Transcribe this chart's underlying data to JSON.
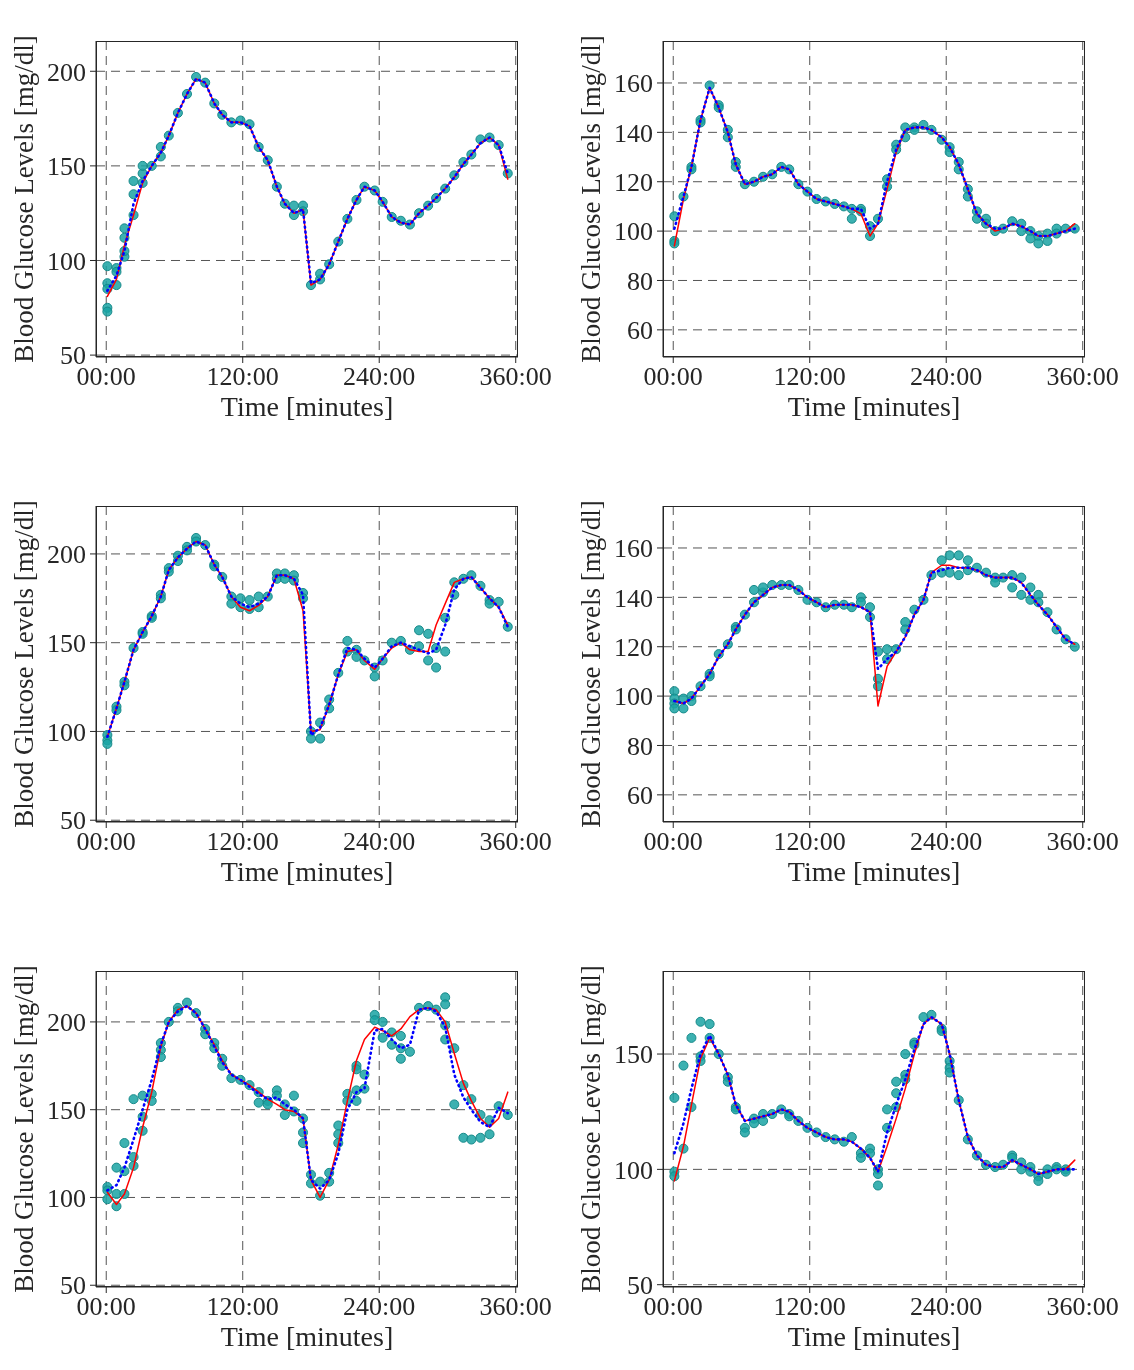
{
  "chart_data": [
    {
      "type": "line",
      "xlabel": "Time [minutes]",
      "ylabel": "Blood Glucose Levels [mg/dl]",
      "xlim": [
        -9,
        362
      ],
      "xticks": [
        {
          "value": 0,
          "label": "00:00"
        },
        {
          "value": 120,
          "label": "120:00"
        },
        {
          "value": 240,
          "label": "240:00"
        },
        {
          "value": 360,
          "label": "360:00"
        }
      ],
      "ylim": [
        49,
        216
      ],
      "yticks": [
        50,
        100,
        150,
        200
      ],
      "grid": true,
      "x": [
        1,
        9,
        16,
        24,
        32,
        40,
        48,
        55,
        63,
        71,
        79,
        87,
        95,
        102,
        110,
        118,
        126,
        134,
        142,
        150,
        157,
        165,
        173,
        180,
        188,
        196,
        204,
        212,
        220,
        227,
        236,
        243,
        251,
        259,
        267,
        275,
        283,
        290,
        298,
        306,
        314,
        321,
        329,
        337,
        345,
        353
      ],
      "series": [
        {
          "type": "line",
          "color": "#ff0000",
          "line_style": "solid",
          "values": [
            81,
            90,
            108,
            124,
            141,
            150,
            157,
            166,
            178,
            188,
            196,
            194,
            183,
            177,
            173,
            173,
            171,
            160,
            153,
            139,
            130,
            125,
            127,
            87,
            90,
            98,
            110,
            122,
            132,
            139,
            137,
            131,
            123,
            120,
            119,
            125,
            129,
            133,
            138,
            144,
            151,
            156,
            162,
            165,
            161,
            143
          ]
        },
        {
          "type": "line",
          "color": "#0000ff",
          "line_style": "dotted",
          "values": [
            84,
            92,
            105,
            130,
            142,
            150,
            157,
            166,
            178,
            188,
            196,
            194,
            183,
            177,
            173,
            173,
            171,
            160,
            153,
            139,
            130,
            125,
            127,
            88,
            90,
            98,
            110,
            122,
            132,
            139,
            137,
            131,
            123,
            120,
            119,
            125,
            129,
            133,
            138,
            144,
            151,
            156,
            162,
            165,
            161,
            146
          ]
        },
        {
          "type": "scatter",
          "color": "#1aa3a3",
          "marker": "circle",
          "x": [
            1,
            1,
            1,
            1,
            1,
            9,
            9,
            9,
            16,
            16,
            16,
            16,
            24,
            24,
            24,
            32,
            32,
            32,
            40,
            48,
            48,
            55,
            63,
            71,
            79,
            87,
            95,
            102,
            110,
            118,
            126,
            134,
            142,
            150,
            157,
            165,
            165,
            173,
            173,
            180,
            188,
            188,
            196,
            204,
            212,
            220,
            227,
            236,
            243,
            251,
            259,
            267,
            275,
            283,
            290,
            298,
            306,
            314,
            321,
            329,
            337,
            345,
            353
          ],
          "values": [
            75,
            73,
            88,
            85,
            97,
            87,
            96,
            94,
            102,
            105,
            112,
            117,
            124,
            135,
            142,
            141,
            146,
            150,
            150,
            155,
            160,
            166,
            178,
            188,
            197,
            194,
            183,
            177,
            173,
            174,
            172,
            160,
            153,
            139,
            130,
            124,
            129,
            129,
            126,
            87,
            90,
            93,
            98,
            110,
            122,
            132,
            139,
            137,
            131,
            123,
            121,
            119,
            125,
            129,
            133,
            138,
            145,
            152,
            156,
            164,
            165,
            161,
            146
          ]
        }
      ]
    },
    {
      "type": "line",
      "xlabel": "Time [minutes]",
      "ylabel": "Blood Glucose Levels [mg/dl]",
      "xlim": [
        -9,
        362
      ],
      "xticks": [
        {
          "value": 0,
          "label": "00:00"
        },
        {
          "value": 120,
          "label": "120:00"
        },
        {
          "value": 240,
          "label": "240:00"
        },
        {
          "value": 360,
          "label": "360:00"
        }
      ],
      "ylim": [
        49,
        177
      ],
      "yticks": [
        60,
        80,
        100,
        120,
        140,
        160
      ],
      "grid": true,
      "x": [
        1,
        9,
        16,
        24,
        32,
        40,
        48,
        55,
        63,
        71,
        79,
        87,
        95,
        102,
        110,
        118,
        126,
        134,
        142,
        150,
        157,
        165,
        173,
        180,
        188,
        196,
        204,
        212,
        220,
        227,
        236,
        243,
        251,
        259,
        267,
        275,
        283,
        290,
        298,
        306,
        314,
        321,
        329,
        337,
        345,
        353
      ],
      "series": [
        {
          "type": "line",
          "color": "#ff0000",
          "line_style": "solid",
          "values": [
            94,
            113,
            126,
            145,
            158,
            150,
            140,
            127,
            119,
            120,
            122,
            123,
            126,
            125,
            119,
            116,
            113,
            112,
            111,
            110,
            109,
            107,
            98,
            103,
            117,
            132,
            141,
            142,
            142,
            141,
            138,
            134,
            127,
            117,
            107,
            103,
            100,
            101,
            103,
            102,
            100,
            98,
            98,
            99,
            100,
            103
          ]
        },
        {
          "type": "line",
          "color": "#0000ff",
          "line_style": "dotted",
          "values": [
            101,
            114,
            126,
            145,
            158,
            150,
            140,
            127,
            119,
            120,
            122,
            123,
            126,
            125,
            119,
            116,
            113,
            112,
            111,
            110,
            109,
            109,
            101,
            103,
            120,
            133,
            141,
            142,
            142,
            141,
            138,
            134,
            127,
            117,
            107,
            103,
            101,
            101,
            103,
            102,
            100,
            98,
            98,
            99,
            100,
            101
          ]
        },
        {
          "type": "scatter",
          "color": "#1aa3a3",
          "marker": "circle",
          "x": [
            1,
            1,
            1,
            9,
            16,
            16,
            24,
            24,
            32,
            40,
            40,
            48,
            48,
            55,
            55,
            63,
            71,
            79,
            87,
            95,
            102,
            110,
            118,
            126,
            134,
            142,
            150,
            157,
            157,
            165,
            165,
            173,
            173,
            180,
            188,
            188,
            196,
            196,
            204,
            204,
            212,
            212,
            220,
            227,
            236,
            243,
            243,
            251,
            251,
            259,
            259,
            267,
            267,
            275,
            275,
            283,
            290,
            298,
            306,
            306,
            314,
            314,
            321,
            321,
            329,
            329,
            337,
            337,
            345,
            353
          ],
          "values": [
            106,
            96,
            95,
            114,
            126,
            125,
            145,
            144,
            159,
            151,
            150,
            141,
            138,
            128,
            126,
            119,
            120,
            122,
            123,
            126,
            125,
            119,
            116,
            113,
            112,
            111,
            110,
            109,
            105,
            109,
            108,
            102,
            98,
            105,
            121,
            118,
            135,
            133,
            142,
            138,
            142,
            141,
            143,
            141,
            137,
            134,
            132,
            128,
            125,
            117,
            114,
            108,
            105,
            105,
            103,
            100,
            101,
            104,
            103,
            100,
            100,
            97,
            98,
            95,
            99,
            96,
            101,
            99,
            101,
            101
          ]
        }
      ]
    },
    {
      "type": "line",
      "xlabel": "Time [minutes]",
      "ylabel": "Blood Glucose Levels [mg/dl]",
      "xlim": [
        -9,
        362
      ],
      "xticks": [
        {
          "value": 0,
          "label": "00:00"
        },
        {
          "value": 120,
          "label": "120:00"
        },
        {
          "value": 240,
          "label": "240:00"
        },
        {
          "value": 360,
          "label": "360:00"
        }
      ],
      "ylim": [
        49,
        227
      ],
      "yticks": [
        50,
        100,
        150,
        200
      ],
      "grid": true,
      "x": [
        1,
        9,
        16,
        24,
        32,
        40,
        48,
        55,
        63,
        71,
        79,
        87,
        95,
        102,
        110,
        118,
        126,
        134,
        142,
        150,
        157,
        165,
        173,
        180,
        188,
        196,
        204,
        212,
        220,
        227,
        236,
        243,
        251,
        259,
        267,
        275,
        283,
        290,
        298,
        306,
        314,
        321,
        329,
        337,
        345,
        353
      ],
      "series": [
        {
          "type": "line",
          "color": "#ff0000",
          "line_style": "solid",
          "values": [
            97,
            113,
            128,
            146,
            156,
            165,
            176,
            191,
            198,
            203,
            207,
            205,
            194,
            187,
            176,
            170,
            168,
            171,
            176,
            188,
            188,
            186,
            168,
            100,
            101,
            115,
            132,
            145,
            146,
            140,
            135,
            141,
            147,
            150,
            146,
            145,
            145,
            160,
            172,
            184,
            186,
            187,
            181,
            175,
            170,
            160
          ]
        },
        {
          "type": "line",
          "color": "#0000ff",
          "line_style": "dotted",
          "values": [
            97,
            113,
            128,
            146,
            156,
            165,
            176,
            191,
            198,
            203,
            207,
            205,
            194,
            187,
            176,
            172,
            170,
            172,
            176,
            188,
            188,
            186,
            177,
            98,
            102,
            115,
            132,
            147,
            146,
            141,
            136,
            141,
            148,
            150,
            148,
            146,
            144,
            146,
            160,
            180,
            186,
            187,
            181,
            175,
            170,
            159
          ]
        },
        {
          "type": "scatter",
          "color": "#1aa3a3",
          "marker": "circle",
          "x": [
            1,
            1,
            1,
            9,
            9,
            16,
            16,
            24,
            32,
            32,
            40,
            40,
            48,
            48,
            55,
            55,
            63,
            63,
            71,
            71,
            79,
            79,
            87,
            95,
            95,
            102,
            110,
            110,
            118,
            118,
            126,
            126,
            134,
            134,
            142,
            150,
            150,
            157,
            157,
            165,
            165,
            173,
            173,
            180,
            180,
            188,
            188,
            196,
            196,
            204,
            212,
            212,
            220,
            220,
            227,
            236,
            236,
            243,
            251,
            259,
            267,
            275,
            275,
            283,
            283,
            290,
            290,
            298,
            298,
            306,
            306,
            314,
            321,
            329,
            337,
            337,
            345,
            353
          ],
          "values": [
            98,
            95,
            93,
            114,
            112,
            128,
            126,
            147,
            156,
            155,
            165,
            164,
            177,
            175,
            192,
            190,
            199,
            196,
            204,
            202,
            209,
            207,
            205,
            194,
            193,
            187,
            176,
            172,
            175,
            170,
            174,
            169,
            176,
            170,
            176,
            189,
            186,
            189,
            186,
            188,
            185,
            178,
            175,
            100,
            96,
            105,
            96,
            118,
            113,
            133,
            151,
            145,
            146,
            142,
            140,
            136,
            131,
            140,
            150,
            151,
            146,
            157,
            148,
            155,
            140,
            147,
            136,
            164,
            145,
            184,
            177,
            186,
            188,
            182,
            174,
            172,
            173,
            159
          ]
        }
      ]
    },
    {
      "type": "line",
      "xlabel": "Time [minutes]",
      "ylabel": "Blood Glucose Levels [mg/dl]",
      "xlim": [
        -9,
        362
      ],
      "xticks": [
        {
          "value": 0,
          "label": "00:00"
        },
        {
          "value": 120,
          "label": "120:00"
        },
        {
          "value": 240,
          "label": "240:00"
        },
        {
          "value": 360,
          "label": "360:00"
        }
      ],
      "ylim": [
        49,
        177
      ],
      "yticks": [
        60,
        80,
        100,
        120,
        140,
        160
      ],
      "grid": true,
      "x": [
        1,
        9,
        16,
        24,
        32,
        40,
        48,
        55,
        63,
        71,
        79,
        87,
        95,
        102,
        110,
        118,
        126,
        134,
        142,
        150,
        157,
        165,
        173,
        180,
        188,
        196,
        204,
        212,
        220,
        227,
        236,
        243,
        251,
        259,
        267,
        275,
        283,
        290,
        298,
        306,
        314,
        321,
        329,
        337,
        345,
        353
      ],
      "series": [
        {
          "type": "line",
          "color": "#ff0000",
          "line_style": "solid",
          "values": [
            98,
            97,
            99,
            104,
            109,
            116,
            121,
            127,
            133,
            138,
            141,
            144,
            145,
            145,
            143,
            140,
            138,
            136,
            137,
            137,
            137,
            136,
            134,
            96,
            112,
            118,
            124,
            133,
            139,
            150,
            153,
            153,
            152,
            152,
            151,
            149,
            148,
            148,
            148,
            146,
            141,
            137,
            133,
            128,
            123,
            121
          ]
        },
        {
          "type": "line",
          "color": "#0000ff",
          "line_style": "dotted",
          "values": [
            98,
            97,
            99,
            104,
            109,
            116,
            121,
            127,
            133,
            138,
            141,
            144,
            145,
            145,
            143,
            140,
            138,
            136,
            137,
            137,
            137,
            136,
            134,
            111,
            115,
            118,
            124,
            133,
            139,
            150,
            151,
            152,
            152,
            152,
            151,
            149,
            148,
            148,
            148,
            146,
            141,
            137,
            133,
            128,
            123,
            121
          ]
        },
        {
          "type": "scatter",
          "color": "#1aa3a3",
          "marker": "circle",
          "x": [
            1,
            1,
            1,
            1,
            9,
            9,
            16,
            16,
            24,
            32,
            32,
            40,
            48,
            55,
            55,
            63,
            71,
            71,
            79,
            79,
            87,
            95,
            102,
            110,
            118,
            126,
            134,
            142,
            150,
            157,
            165,
            165,
            173,
            173,
            180,
            180,
            180,
            188,
            188,
            196,
            204,
            204,
            212,
            220,
            227,
            236,
            236,
            243,
            243,
            251,
            251,
            259,
            259,
            267,
            275,
            283,
            283,
            290,
            298,
            298,
            306,
            306,
            314,
            314,
            321,
            321,
            329,
            337,
            345,
            353
          ],
          "values": [
            102,
            99,
            97,
            95,
            99,
            95,
            100,
            98,
            104,
            109,
            108,
            117,
            121,
            128,
            127,
            133,
            138,
            143,
            142,
            144,
            145,
            145,
            145,
            143,
            139,
            138,
            136,
            137,
            137,
            136,
            140,
            138,
            136,
            132,
            118,
            107,
            104,
            119,
            115,
            119,
            130,
            127,
            135,
            139,
            149,
            155,
            150,
            157,
            150,
            157,
            149,
            155,
            151,
            152,
            150,
            148,
            146,
            148,
            149,
            144,
            148,
            141,
            144,
            139,
            141,
            138,
            134,
            127,
            123,
            120
          ]
        }
      ]
    },
    {
      "type": "line",
      "xlabel": "Time [minutes]",
      "ylabel": "Blood Glucose Levels [mg/dl]",
      "xlim": [
        -9,
        362
      ],
      "xticks": [
        {
          "value": 0,
          "label": "00:00"
        },
        {
          "value": 120,
          "label": "120:00"
        },
        {
          "value": 240,
          "label": "240:00"
        },
        {
          "value": 360,
          "label": "360:00"
        }
      ],
      "ylim": [
        49,
        229
      ],
      "yticks": [
        50,
        100,
        150,
        200
      ],
      "grid": true,
      "x": [
        1,
        9,
        16,
        24,
        32,
        40,
        48,
        55,
        63,
        71,
        79,
        87,
        95,
        102,
        110,
        118,
        126,
        134,
        142,
        150,
        157,
        165,
        173,
        180,
        188,
        196,
        204,
        212,
        220,
        227,
        236,
        243,
        251,
        259,
        267,
        275,
        283,
        290,
        298,
        306,
        314,
        321,
        329,
        337,
        345,
        353
      ],
      "series": [
        {
          "type": "line",
          "color": "#ff0000",
          "line_style": "solid",
          "values": [
            103,
            96,
            102,
            117,
            140,
            160,
            186,
            200,
            207,
            209,
            205,
            196,
            187,
            178,
            170,
            167,
            164,
            160,
            156,
            153,
            150,
            149,
            145,
            110,
            100,
            110,
            130,
            155,
            178,
            190,
            197,
            195,
            192,
            196,
            203,
            207,
            208,
            207,
            200,
            182,
            165,
            155,
            145,
            140,
            145,
            160
          ]
        },
        {
          "type": "line",
          "color": "#0000ff",
          "line_style": "dotted",
          "values": [
            104,
            107,
            117,
            133,
            150,
            167,
            187,
            200,
            206,
            209,
            205,
            196,
            186,
            177,
            170,
            167,
            163,
            159,
            156,
            157,
            153,
            150,
            145,
            110,
            105,
            110,
            125,
            150,
            160,
            162,
            195,
            196,
            190,
            185,
            187,
            207,
            208,
            206,
            197,
            170,
            157,
            150,
            143,
            140,
            151,
            148
          ]
        },
        {
          "type": "scatter",
          "color": "#1aa3a3",
          "marker": "circle",
          "x": [
            1,
            1,
            1,
            9,
            9,
            9,
            16,
            16,
            16,
            24,
            24,
            24,
            32,
            32,
            32,
            40,
            40,
            48,
            48,
            48,
            55,
            63,
            63,
            71,
            79,
            87,
            87,
            95,
            95,
            102,
            102,
            110,
            118,
            126,
            134,
            134,
            142,
            142,
            150,
            150,
            157,
            157,
            165,
            165,
            173,
            173,
            173,
            180,
            180,
            188,
            188,
            196,
            196,
            204,
            204,
            204,
            212,
            212,
            220,
            220,
            220,
            220,
            227,
            227,
            236,
            236,
            243,
            243,
            251,
            251,
            259,
            259,
            259,
            267,
            275,
            283,
            290,
            298,
            298,
            298,
            298,
            306,
            306,
            314,
            314,
            321,
            321,
            329,
            329,
            337,
            337,
            345,
            353
          ],
          "values": [
            106,
            104,
            99,
            117,
            102,
            95,
            131,
            115,
            102,
            156,
            123,
            118,
            158,
            146,
            138,
            159,
            155,
            188,
            184,
            180,
            200,
            208,
            206,
            211,
            205,
            196,
            193,
            188,
            185,
            179,
            175,
            168,
            167,
            164,
            160,
            154,
            155,
            153,
            161,
            158,
            153,
            147,
            158,
            149,
            145,
            137,
            131,
            113,
            108,
            109,
            101,
            114,
            109,
            141,
            136,
            131,
            159,
            155,
            175,
            173,
            161,
            155,
            170,
            162,
            204,
            201,
            200,
            191,
            194,
            187,
            192,
            185,
            179,
            183,
            208,
            209,
            207,
            214,
            210,
            198,
            190,
            185,
            153,
            164,
            134,
            156,
            133,
            147,
            134,
            144,
            136,
            152,
            147
          ]
        }
      ]
    },
    {
      "type": "line",
      "xlabel": "Time [minutes]",
      "ylabel": "Blood Glucose Levels [mg/dl]",
      "xlim": [
        -9,
        362
      ],
      "xticks": [
        {
          "value": 0,
          "label": "00:00"
        },
        {
          "value": 120,
          "label": "120:00"
        },
        {
          "value": 240,
          "label": "240:00"
        },
        {
          "value": 360,
          "label": "360:00"
        }
      ],
      "ylim": [
        49,
        186
      ],
      "yticks": [
        50,
        100,
        150
      ],
      "grid": true,
      "x": [
        1,
        9,
        16,
        24,
        32,
        40,
        48,
        55,
        63,
        71,
        79,
        87,
        95,
        102,
        110,
        118,
        126,
        134,
        142,
        150,
        157,
        165,
        173,
        180,
        188,
        196,
        204,
        212,
        220,
        227,
        236,
        243,
        251,
        259,
        267,
        275,
        283,
        290,
        298,
        306,
        314,
        321,
        329,
        337,
        345,
        353
      ],
      "series": [
        {
          "type": "line",
          "color": "#ff0000",
          "line_style": "solid",
          "values": [
            95,
            110,
            128,
            148,
            157,
            150,
            141,
            128,
            121,
            122,
            123,
            124,
            126,
            125,
            121,
            118,
            116,
            114,
            113,
            113,
            112,
            109,
            105,
            99,
            110,
            122,
            135,
            150,
            163,
            166,
            163,
            150,
            130,
            114,
            106,
            102,
            101,
            101,
            104,
            102,
            100,
            98,
            99,
            100,
            100,
            104
          ]
        },
        {
          "type": "line",
          "color": "#0000ff",
          "line_style": "dotted",
          "values": [
            107,
            120,
            135,
            150,
            158,
            150,
            141,
            128,
            121,
            122,
            123,
            124,
            126,
            125,
            121,
            118,
            116,
            114,
            113,
            113,
            112,
            109,
            105,
            99,
            116,
            128,
            139,
            152,
            163,
            166,
            163,
            150,
            130,
            114,
            106,
            102,
            101,
            101,
            104,
            102,
            100,
            98,
            99,
            100,
            100,
            100
          ]
        },
        {
          "type": "scatter",
          "color": "#1aa3a3",
          "marker": "circle",
          "x": [
            1,
            1,
            1,
            9,
            9,
            16,
            16,
            24,
            24,
            24,
            32,
            32,
            40,
            48,
            48,
            55,
            55,
            63,
            63,
            71,
            71,
            79,
            79,
            87,
            95,
            102,
            102,
            110,
            118,
            126,
            134,
            142,
            150,
            157,
            165,
            165,
            173,
            173,
            180,
            180,
            180,
            188,
            188,
            196,
            196,
            196,
            204,
            204,
            204,
            212,
            212,
            220,
            227,
            236,
            236,
            243,
            243,
            243,
            251,
            259,
            267,
            275,
            283,
            290,
            298,
            298,
            306,
            306,
            314,
            314,
            321,
            321,
            329,
            329,
            337,
            337,
            345,
            345
          ],
          "values": [
            131,
            99,
            97,
            145,
            109,
            157,
            127,
            164,
            149,
            147,
            163,
            157,
            150,
            140,
            138,
            127,
            126,
            118,
            116,
            122,
            120,
            124,
            121,
            124,
            126,
            124,
            123,
            121,
            118,
            116,
            114,
            113,
            112,
            114,
            107,
            105,
            109,
            107,
            100,
            98,
            93,
            126,
            118,
            138,
            133,
            127,
            150,
            141,
            139,
            155,
            154,
            166,
            167,
            161,
            160,
            147,
            144,
            142,
            130,
            113,
            106,
            102,
            101,
            102,
            106,
            105,
            103,
            100,
            101,
            99,
            97,
            95,
            100,
            98,
            101,
            100,
            100,
            99
          ]
        }
      ]
    }
  ]
}
